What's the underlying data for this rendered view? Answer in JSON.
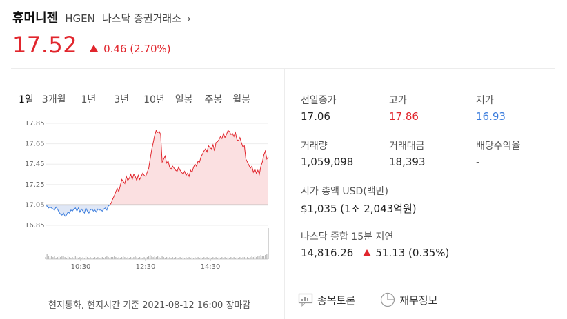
{
  "header": {
    "name": "휴머니젠",
    "ticker": "HGEN",
    "exchange": "나스닥 증권거래소",
    "chevron": "›",
    "price": "17.52",
    "change": "0.46 (2.70%)"
  },
  "tabs": [
    "1일",
    "3개월",
    "1년",
    "3년",
    "10년",
    "일봉",
    "주봉",
    "월봉"
  ],
  "chart_data": {
    "type": "line",
    "yticks": [
      "17.85",
      "17.65",
      "17.45",
      "17.25",
      "17.05",
      "16.85"
    ],
    "xticks": [
      "10:30",
      "12:30",
      "14:30"
    ],
    "ylim": [
      16.85,
      17.85
    ],
    "baseline": 17.05,
    "series": [
      {
        "values": [
          17.04,
          17.04,
          17.02,
          17.03,
          17.02,
          17.01,
          17.0,
          17.03,
          17.01,
          16.98,
          16.96,
          16.95,
          16.97,
          16.94,
          16.95,
          16.98,
          16.97,
          17.0,
          16.99,
          17.01,
          17.02,
          16.99,
          17.02,
          16.98,
          17.01,
          16.99,
          16.97,
          17.02,
          16.99,
          16.97,
          17.0,
          17.01,
          16.99,
          17.0,
          16.98,
          17.01,
          17.0,
          17.0,
          16.99,
          17.01,
          17.02,
          17.0,
          17.04,
          17.05,
          17.07,
          17.11,
          17.14,
          17.18,
          17.21,
          17.18,
          17.24,
          17.3,
          17.28,
          17.26,
          17.33,
          17.29,
          17.31,
          17.35,
          17.3,
          17.35,
          17.33,
          17.29,
          17.34,
          17.3,
          17.33,
          17.36,
          17.34,
          17.33,
          17.37,
          17.41,
          17.5,
          17.59,
          17.66,
          17.73,
          17.78,
          17.76,
          17.77,
          17.74,
          17.47,
          17.5,
          17.53,
          17.46,
          17.48,
          17.42,
          17.4,
          17.43,
          17.41,
          17.39,
          17.38,
          17.42,
          17.39,
          17.37,
          17.35,
          17.38,
          17.34,
          17.36,
          17.33,
          17.39,
          17.37,
          17.42,
          17.45,
          17.43,
          17.48,
          17.47,
          17.52,
          17.55,
          17.58,
          17.6,
          17.57,
          17.63,
          17.61,
          17.6,
          17.64,
          17.58,
          17.66,
          17.67,
          17.69,
          17.72,
          17.7,
          17.75,
          17.71,
          17.74,
          17.78,
          17.77,
          17.74,
          17.75,
          17.72,
          17.76,
          17.69,
          17.68,
          17.71,
          17.66,
          17.62,
          17.63,
          17.5,
          17.47,
          17.44,
          17.41,
          17.43,
          17.37,
          17.4,
          17.36,
          17.39,
          17.35,
          17.43,
          17.47,
          17.54,
          17.58,
          17.5,
          17.52
        ]
      }
    ],
    "volume": [
      3,
      8,
      4,
      5,
      4,
      3,
      4,
      2,
      3,
      4,
      3,
      5,
      4,
      3,
      2,
      4,
      3,
      2,
      3,
      2,
      4,
      3,
      2,
      3,
      2,
      3,
      2,
      4,
      3,
      2,
      3,
      2,
      2,
      3,
      2,
      3,
      2,
      2,
      3,
      2,
      3,
      4,
      3,
      2,
      3,
      3,
      4,
      3,
      2,
      3,
      2,
      3,
      4,
      3,
      2,
      3,
      2,
      3,
      2,
      3,
      4,
      3,
      2,
      3,
      2,
      2,
      3,
      2,
      3,
      4,
      6,
      4,
      3,
      5,
      3,
      4,
      3,
      2,
      4,
      3,
      2,
      3,
      2,
      3,
      2,
      3,
      2,
      3,
      2,
      2,
      3,
      2,
      3,
      2,
      3,
      2,
      3,
      2,
      3,
      2,
      3,
      2,
      3,
      2,
      3,
      2,
      3,
      2,
      3,
      2,
      3,
      2,
      3,
      2,
      3,
      2,
      3,
      2,
      3,
      2,
      3,
      2,
      3,
      2,
      3,
      2,
      3,
      2,
      3,
      2,
      3,
      2,
      3,
      3,
      2,
      3,
      2,
      3,
      4,
      3,
      4,
      3,
      5,
      4,
      6,
      4,
      5,
      6,
      8,
      45
    ]
  },
  "footer_note": "현지통화, 현지시간 기준 2021-08-12 16:00 장마감",
  "stats": {
    "prev_close_label": "전일종가",
    "prev_close": "17.06",
    "high_label": "고가",
    "high": "17.86",
    "low_label": "저가",
    "low": "16.93",
    "volume_label": "거래량",
    "volume": "1,059,098",
    "turnover_label": "거래대금",
    "turnover": "18,393",
    "dividend_label": "배당수익율",
    "dividend": "-",
    "mcap_label": "시가 총액 USD(백만)",
    "mcap": "$1,035 (1조 2,043억원)",
    "index_label": "나스닥 종합 15분 지연",
    "index_value": "14,816.26",
    "index_change": "51.13 (0.35%)"
  },
  "links": {
    "discussion": "종목토론",
    "financials": "재무정보"
  },
  "colors": {
    "up": "#e1262d",
    "down": "#3b7ddd",
    "up_fill": "#fbe0e1",
    "down_fill": "#dfe7f6"
  }
}
